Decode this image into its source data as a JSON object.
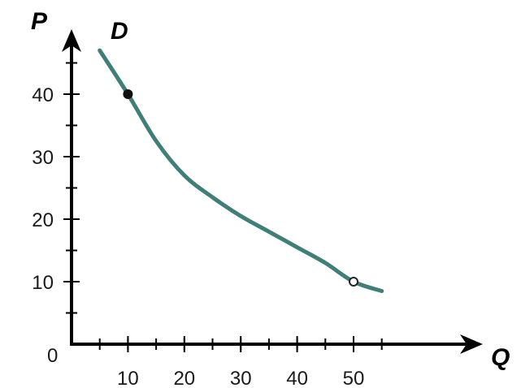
{
  "chart_data": {
    "type": "line",
    "title": "",
    "xlabel": "Q",
    "ylabel": "P",
    "curve_label": "D",
    "origin_label": "0",
    "xlim": [
      0,
      60
    ],
    "ylim": [
      0,
      50
    ],
    "x_ticks": [
      10,
      20,
      30,
      40,
      50
    ],
    "y_ticks": [
      10,
      20,
      30,
      40
    ],
    "x_minor_step": 5,
    "y_minor_step": 5,
    "series": [
      {
        "x": [
          5,
          10,
          15,
          20,
          25,
          30,
          35,
          40,
          45,
          50,
          55
        ],
        "y": [
          47,
          40,
          32.5,
          27,
          23.5,
          20.5,
          18,
          15.5,
          13,
          10,
          8.5
        ]
      }
    ],
    "marked_points": [
      {
        "x": 10,
        "y": 40,
        "style": "filled"
      },
      {
        "x": 50,
        "y": 10,
        "style": "open"
      }
    ],
    "curve_color": "#3f7f78",
    "grid": false
  }
}
